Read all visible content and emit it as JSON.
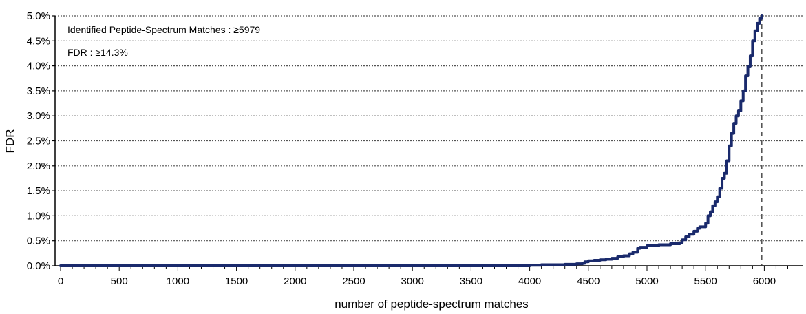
{
  "chart_data": {
    "type": "line",
    "title": "",
    "xlabel": "number of peptide-spectrum matches",
    "ylabel": "FDR",
    "xlim": [
      0,
      6200
    ],
    "ylim": [
      0,
      5.0
    ],
    "x_ticks": [
      0,
      500,
      1000,
      1500,
      2000,
      2500,
      3000,
      3500,
      4000,
      4500,
      5000,
      5500,
      6000
    ],
    "x_tick_labels": [
      "0",
      "500",
      "1000",
      "1500",
      "2000",
      "2500",
      "3000",
      "3500",
      "4000",
      "4500",
      "5000",
      "5500",
      "6000"
    ],
    "y_ticks": [
      0,
      0.5,
      1.0,
      1.5,
      2.0,
      2.5,
      3.0,
      3.5,
      4.0,
      4.5,
      5.0
    ],
    "y_tick_labels": [
      "0.0%",
      "0.5%",
      "1.0%",
      "1.5%",
      "2.0%",
      "2.5%",
      "3.0%",
      "3.5%",
      "4.0%",
      "4.5%",
      "5.0%"
    ],
    "grid": "horizontal-dotted",
    "line_color": "#1a2a6c",
    "annotations": [
      "Identified Peptide-Spectrum Matches :  ≥5979",
      "FDR :  ≥14.3%"
    ],
    "cutoff_x": 5979,
    "series": [
      {
        "x": [
          0,
          500,
          1000,
          1500,
          2000,
          2500,
          3000,
          3500,
          3900,
          4000,
          4100,
          4200,
          4300,
          4400,
          4450,
          4470,
          4500,
          4550,
          4600,
          4650,
          4700,
          4750,
          4800,
          4850,
          4880,
          4920,
          4940,
          5000,
          5100,
          5200,
          5280,
          5300,
          5330,
          5360,
          5400,
          5430,
          5450,
          5470,
          5500,
          5520,
          5540,
          5560,
          5580,
          5600,
          5620,
          5640,
          5660,
          5680,
          5700,
          5720,
          5740,
          5760,
          5780,
          5800,
          5820,
          5840,
          5860,
          5880,
          5900,
          5920,
          5940,
          5960,
          5979
        ],
        "y": [
          0,
          0,
          0,
          0,
          0,
          0,
          0,
          0,
          0,
          0.01,
          0.02,
          0.02,
          0.03,
          0.04,
          0.05,
          0.08,
          0.1,
          0.11,
          0.12,
          0.13,
          0.15,
          0.18,
          0.2,
          0.24,
          0.27,
          0.35,
          0.37,
          0.4,
          0.42,
          0.44,
          0.46,
          0.52,
          0.58,
          0.63,
          0.69,
          0.75,
          0.78,
          0.78,
          0.85,
          1.0,
          1.08,
          1.2,
          1.28,
          1.38,
          1.55,
          1.75,
          1.85,
          2.1,
          2.4,
          2.65,
          2.85,
          3.0,
          3.1,
          3.3,
          3.5,
          3.8,
          3.98,
          4.2,
          4.5,
          4.7,
          4.85,
          4.95,
          5.0
        ]
      }
    ]
  }
}
